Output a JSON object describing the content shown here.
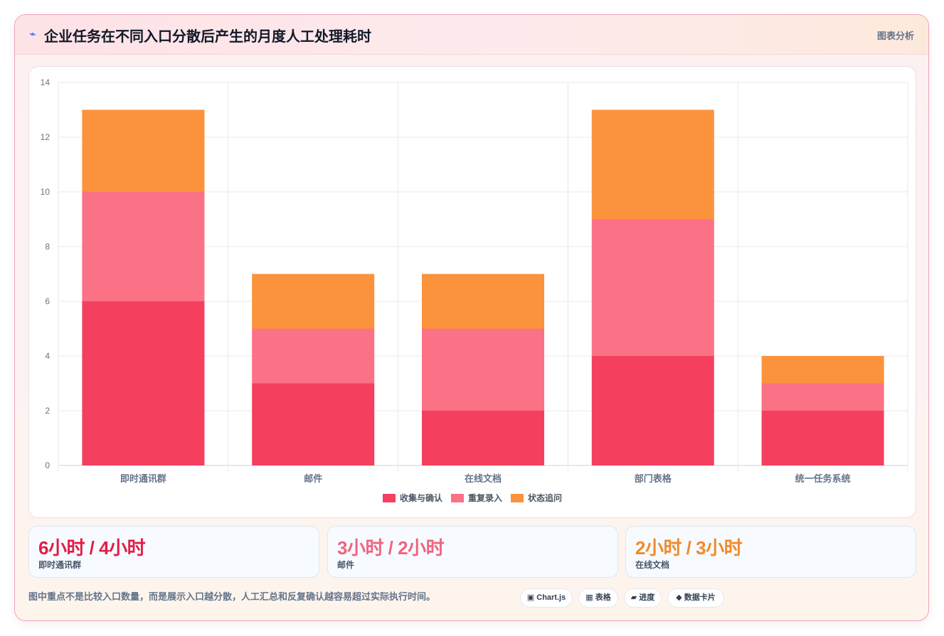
{
  "header": {
    "icon": "lightning-icon",
    "title": "企业任务在不同入口分散后产生的月度人工处理耗时",
    "tag": "图表分析"
  },
  "chart_data": {
    "type": "bar",
    "stacked": true,
    "categories": [
      "即时通讯群",
      "邮件",
      "在线文档",
      "部门表格",
      "统一任务系统"
    ],
    "series": [
      {
        "name": "收集与确认",
        "color": "#f43f5e",
        "values": [
          6,
          3,
          2,
          4,
          2
        ]
      },
      {
        "name": "重复录入",
        "color": "#fb7185",
        "values": [
          4,
          2,
          3,
          5,
          1
        ]
      },
      {
        "name": "状态追问",
        "color": "#fb923c",
        "values": [
          3,
          2,
          2,
          4,
          1
        ]
      }
    ],
    "ylim": [
      0,
      14
    ],
    "yticks": [
      0,
      2,
      4,
      6,
      8,
      10,
      12,
      14
    ],
    "grid": true,
    "legend": "bottom"
  },
  "stats": [
    {
      "value": "6小时 / 4小时",
      "label": "即时通讯群",
      "color": "#e11d48"
    },
    {
      "value": "3小时 / 2小时",
      "label": "邮件",
      "color": "#f06480"
    },
    {
      "value": "2小时 / 3小时",
      "label": "在线文档",
      "color": "#f18a2c"
    }
  ],
  "footer": {
    "note": "图中重点不是比较入口数量，而是展示入口越分散，人工汇总和反复确认越容易超过实际执行时间。",
    "chips": [
      {
        "icon": "▣",
        "label": "Chart.js"
      },
      {
        "icon": "▦",
        "label": "表格"
      },
      {
        "icon": "▰",
        "label": "进度"
      },
      {
        "icon": "◆",
        "label": "数据卡片"
      }
    ]
  }
}
